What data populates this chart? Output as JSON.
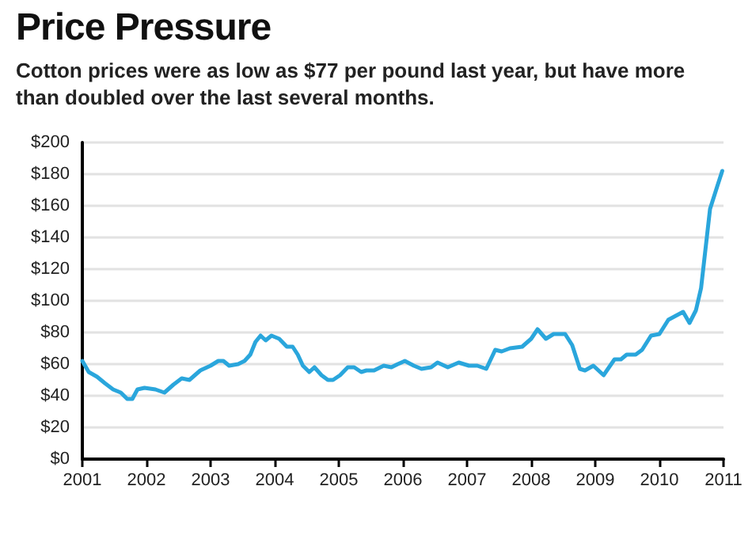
{
  "chart_data": {
    "type": "line",
    "title": "Price Pressure",
    "subtitle": "Cotton prices were as low as $77 per pound last year, but have more than doubled over the last several months.",
    "x": [
      2001.0,
      2001.1,
      2001.23,
      2001.35,
      2001.48,
      2001.6,
      2001.7,
      2001.78,
      2001.86,
      2001.97,
      2002.14,
      2002.28,
      2002.42,
      2002.55,
      2002.67,
      2002.84,
      2003.0,
      2003.12,
      2003.2,
      2003.29,
      2003.43,
      2003.53,
      2003.62,
      2003.7,
      2003.78,
      2003.86,
      2003.95,
      2004.07,
      2004.19,
      2004.28,
      2004.36,
      2004.44,
      2004.54,
      2004.62,
      2004.73,
      2004.83,
      2004.91,
      2005.02,
      2005.14,
      2005.24,
      2005.35,
      2005.43,
      2005.55,
      2005.7,
      2005.82,
      2005.92,
      2006.03,
      2006.17,
      2006.29,
      2006.44,
      2006.54,
      2006.7,
      2006.87,
      2007.03,
      2007.16,
      2007.3,
      2007.44,
      2007.54,
      2007.67,
      2007.86,
      2008.0,
      2008.1,
      2008.23,
      2008.35,
      2008.53,
      2008.64,
      2008.76,
      2008.84,
      2008.97,
      2009.13,
      2009.3,
      2009.4,
      2009.49,
      2009.63,
      2009.73,
      2009.87,
      2010.0,
      2010.14,
      2010.37,
      2010.47,
      2010.57,
      2010.65,
      2010.79,
      2010.9,
      2010.98
    ],
    "series": [
      {
        "color": "#2aa6dc",
        "values": [
          62,
          55,
          52,
          48,
          44,
          42,
          38,
          38,
          44,
          45,
          44,
          42,
          47,
          51,
          50,
          56,
          59,
          62,
          62,
          59,
          60,
          62,
          66,
          74,
          78,
          75,
          78,
          76,
          71,
          71,
          66,
          59,
          55,
          58,
          53,
          50,
          50,
          53,
          58,
          58,
          55,
          56,
          56,
          59,
          58,
          60,
          62,
          59,
          57,
          58,
          61,
          58,
          61,
          59,
          59,
          57,
          69,
          68,
          70,
          71,
          76,
          82,
          76,
          79,
          79,
          72,
          57,
          56,
          59,
          53,
          63,
          63,
          66,
          66,
          69,
          78,
          79,
          88,
          93,
          86,
          94,
          108,
          158,
          172,
          182
        ]
      }
    ],
    "xlim": [
      2001,
      2011
    ],
    "xticks": [
      2001,
      2002,
      2003,
      2004,
      2005,
      2006,
      2007,
      2008,
      2009,
      2010,
      2011
    ],
    "ylim": [
      0,
      200
    ],
    "yticks": [
      {
        "value": 0,
        "label": "$0"
      },
      {
        "value": 20,
        "label": "$20"
      },
      {
        "value": 40,
        "label": "$40"
      },
      {
        "value": 60,
        "label": "$60"
      },
      {
        "value": 80,
        "label": "$80"
      },
      {
        "value": 100,
        "label": "$100"
      },
      {
        "value": 120,
        "label": "$120"
      },
      {
        "value": 140,
        "label": "$140"
      },
      {
        "value": 160,
        "label": "$160"
      },
      {
        "value": 180,
        "label": "$180"
      },
      {
        "value": 200,
        "label": "$200"
      }
    ],
    "grid": "y",
    "marker": "none",
    "line_style": "solid"
  }
}
